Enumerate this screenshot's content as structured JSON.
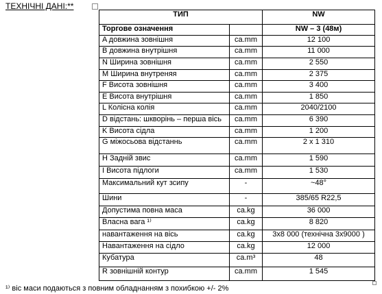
{
  "heading": "ТЕХНІЧНІ ДАНІ:**",
  "table": {
    "header": [
      "ТИП",
      "NW"
    ],
    "trade_name": {
      "label": "Торгове означення",
      "value": "NW – 3 (48м)"
    },
    "rows": [
      [
        "A  довжина зовнішня",
        "ca.mm",
        "12 100"
      ],
      [
        "B довжина внутрішня",
        "ca.mm",
        "11 000"
      ],
      [
        "N Ширина зовнішня",
        "ca.mm",
        "2 550"
      ],
      [
        "M Ширина внутреняя",
        "ca.mm",
        "2 375"
      ],
      [
        "F Висота зовнішня",
        "ca.mm",
        "3 400"
      ],
      [
        "E Висота внутрішня",
        "ca.mm",
        "1 850"
      ],
      [
        "L Колісна колія",
        "ca.mm",
        "2040/2100"
      ],
      [
        "D відстань: шкворінь – перша вісь",
        "ca.mm",
        "6 390"
      ],
      [
        "K Висота сідла",
        "ca.mm",
        "1 200"
      ],
      [
        "G міжосьова відстаннь",
        "ca.mm",
        "2 x 1 310"
      ],
      [
        "H Задній звис",
        "ca.mm",
        "1  590"
      ],
      [
        "I Висота підлоги",
        "ca.mm",
        "1 530"
      ],
      [
        "Максимальний кут зсипу",
        "-",
        "~48°"
      ],
      [
        "Шини",
        "-",
        "385/65 R22,5"
      ],
      [
        "Допустима повна маса",
        "ca.kg",
        "36 000"
      ],
      [
        "Власна вага ¹⁾",
        "ca.kg",
        "8 820"
      ],
      [
        "навантаження на вісь",
        "ca.kg",
        "3x8 000 (технічна 3x9000 )"
      ],
      [
        "Навантаження на сідло",
        "ca.kg",
        "12 000"
      ],
      [
        "Кубатура",
        "ca.m³",
        "48"
      ],
      [
        "R зовнішній контур",
        "ca.mm",
        "1 545"
      ]
    ]
  },
  "footnote": "¹⁾ віс маси подаються з повним обладнанням з похибкою +/- 2%"
}
